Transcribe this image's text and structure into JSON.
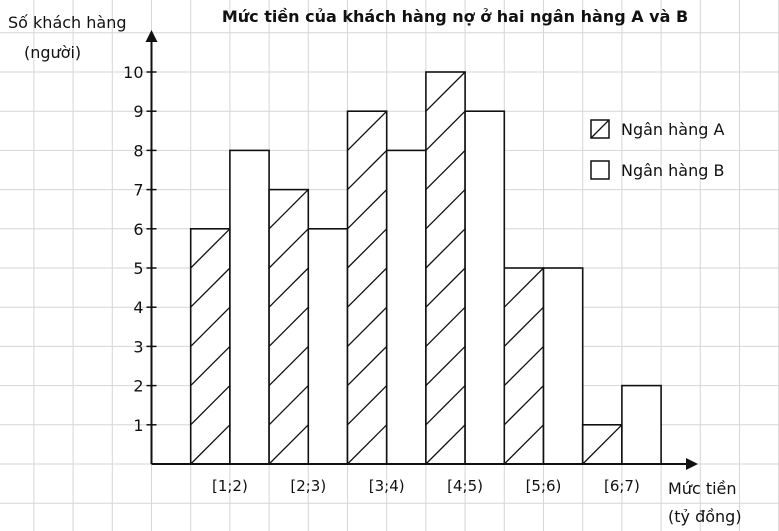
{
  "chart_data": {
    "type": "bar",
    "title": "Mức tiền của khách hàng nợ ở hai ngân hàng A và B",
    "ylabel": [
      "Số khách hàng",
      "(người)"
    ],
    "xlabel": [
      "Mức tiền",
      "(tỷ đồng)"
    ],
    "categories": [
      "[1;2)",
      "[2;3)",
      "[3;4)",
      "[4;5)",
      "[5;6)",
      "[6;7)"
    ],
    "yticks": [
      1,
      2,
      3,
      4,
      5,
      6,
      7,
      8,
      9,
      10
    ],
    "ylim": [
      0,
      10
    ],
    "grid": true,
    "legend_position": "right",
    "series": [
      {
        "name": "Ngân hàng A",
        "pattern": "hatched",
        "values": [
          6,
          7,
          9,
          10,
          5,
          1
        ]
      },
      {
        "name": "Ngân hàng B",
        "pattern": "empty",
        "values": [
          8,
          6,
          8,
          9,
          5,
          2
        ]
      }
    ],
    "colors": {
      "grid": "#d6d6d6",
      "ink": "#111111",
      "background": "#ffffff"
    }
  }
}
